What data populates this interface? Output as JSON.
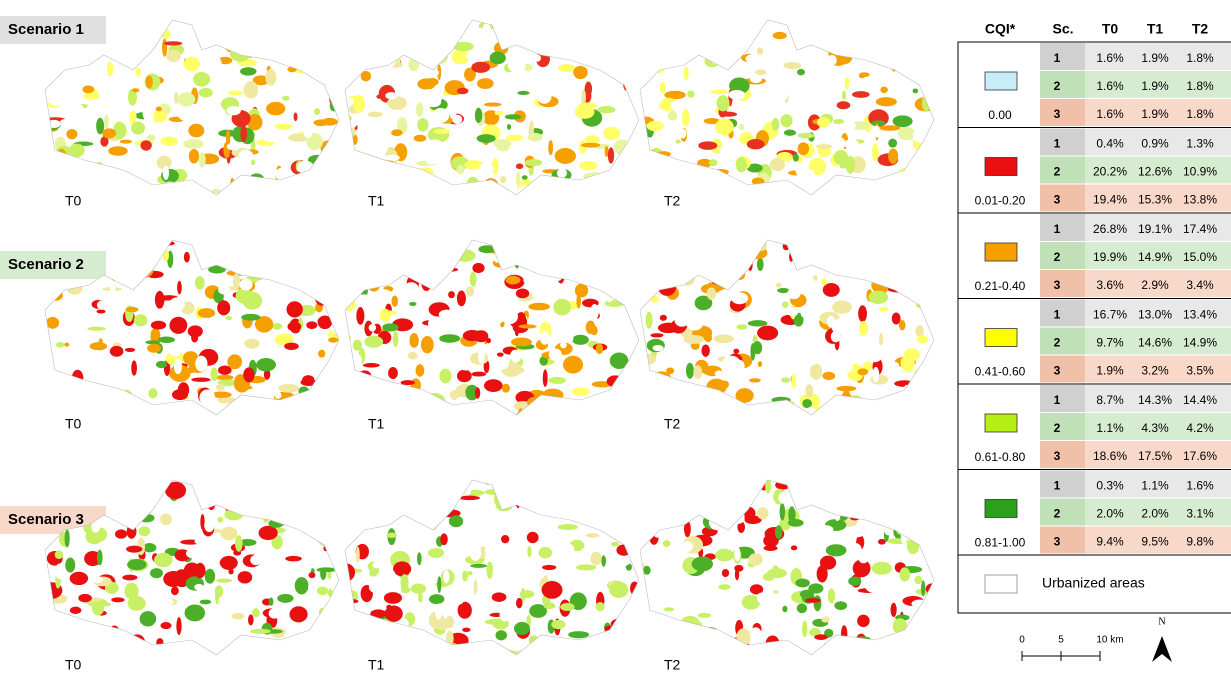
{
  "scenarios": [
    {
      "label": "Scenario 1",
      "maps": [
        "T0",
        "T1",
        "T2"
      ]
    },
    {
      "label": "Scenario 2",
      "maps": [
        "T0",
        "T1",
        "T2"
      ]
    },
    {
      "label": "Scenario 3",
      "maps": [
        "T0",
        "T1",
        "T2"
      ]
    }
  ],
  "legend": {
    "headers": [
      "CQI*",
      "Sc.",
      "T0",
      "T1",
      "T2"
    ],
    "classes": [
      {
        "range": "0.00",
        "rows": [
          [
            "1",
            "1.6%",
            "1.9%",
            "1.8%"
          ],
          [
            "2",
            "1.6%",
            "1.9%",
            "1.8%"
          ],
          [
            "3",
            "1.6%",
            "1.9%",
            "1.8%"
          ]
        ]
      },
      {
        "range": "0.01-0.20",
        "rows": [
          [
            "1",
            "0.4%",
            "0.9%",
            "1.3%"
          ],
          [
            "2",
            "20.2%",
            "12.6%",
            "10.9%"
          ],
          [
            "3",
            "19.4%",
            "15.3%",
            "13.8%"
          ]
        ]
      },
      {
        "range": "0.21-0.40",
        "rows": [
          [
            "1",
            "26.8%",
            "19.1%",
            "17.4%"
          ],
          [
            "2",
            "19.9%",
            "14.9%",
            "15.0%"
          ],
          [
            "3",
            "3.6%",
            "2.9%",
            "3.4%"
          ]
        ]
      },
      {
        "range": "0.41-0.60",
        "rows": [
          [
            "1",
            "16.7%",
            "13.0%",
            "13.4%"
          ],
          [
            "2",
            "9.7%",
            "14.6%",
            "14.9%"
          ],
          [
            "3",
            "1.9%",
            "3.2%",
            "3.5%"
          ]
        ]
      },
      {
        "range": "0.61-0.80",
        "rows": [
          [
            "1",
            "8.7%",
            "14.3%",
            "14.4%"
          ],
          [
            "2",
            "1.1%",
            "4.3%",
            "4.2%"
          ],
          [
            "3",
            "18.6%",
            "17.5%",
            "17.6%"
          ]
        ]
      },
      {
        "range": "0.81-1.00",
        "rows": [
          [
            "1",
            "0.3%",
            "1.1%",
            "1.6%"
          ],
          [
            "2",
            "2.0%",
            "2.0%",
            "3.1%"
          ],
          [
            "3",
            "9.4%",
            "9.5%",
            "9.8%"
          ]
        ]
      }
    ],
    "urbanized": "Urbanized areas"
  },
  "scale": {
    "ticks": [
      "0",
      "5",
      "10 km"
    ],
    "north": "N"
  }
}
